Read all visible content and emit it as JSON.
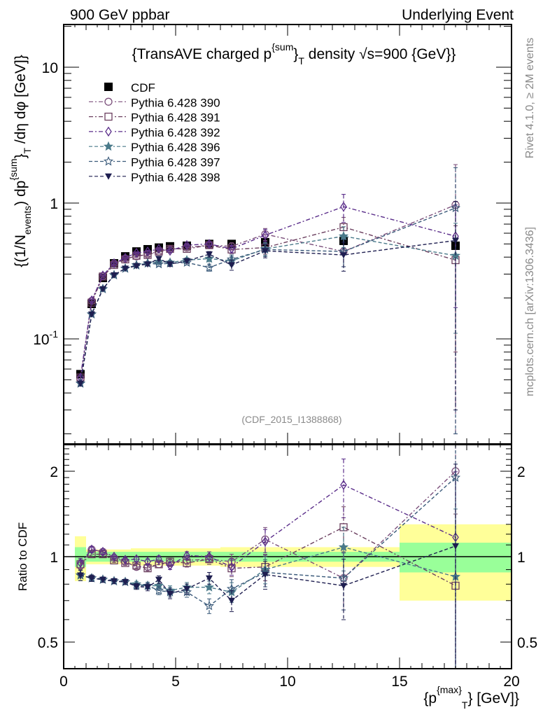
{
  "header": {
    "left": "900 GeV ppbar",
    "right": "Underlying Event"
  },
  "side_labels": {
    "rivet": "Rivet 4.1.0, ≥ 2M events",
    "mcplots": "mcplots.cern.ch [arXiv:1306.3436]"
  },
  "chart_data": [
    {
      "type": "line",
      "panel": "main",
      "title": "{TransAVE charged p^{sum}_T density √s=900 {GeV}}",
      "title_parts": {
        "pre": "{TransAVE charged p",
        "sup": "{sum",
        "sup_close": "}",
        "sub": "T",
        "post": " density √s=900 {GeV}}"
      },
      "ylabel": "{(1/N_events) dp^{sum}_T /dη dφ [GeV]}",
      "ylabel_parts": {
        "a": "{(1/N",
        "b": "events",
        "c": ") dp",
        "d": "{sum",
        "e": "}",
        "f": "T",
        "g": " /dη  dφ [GeV]}"
      },
      "xlabel": "",
      "yscale": "log",
      "ylim": [
        0.018,
        20
      ],
      "xlim": [
        0,
        20
      ],
      "yticks": [
        {
          "v": 10,
          "label": "10"
        },
        {
          "v": 1,
          "label": "1"
        },
        {
          "v": 0.1,
          "label": "10^-1"
        }
      ],
      "annotation": "(CDF_2015_I1388868)",
      "legend_position": "top-left",
      "x": [
        0.75,
        1.25,
        1.75,
        2.25,
        2.75,
        3.25,
        3.75,
        4.25,
        4.75,
        5.5,
        6.5,
        7.5,
        9.0,
        12.5,
        17.5
      ],
      "data": {
        "name": "CDF",
        "values": [
          0.055,
          0.181,
          0.281,
          0.36,
          0.405,
          0.44,
          0.457,
          0.47,
          0.48,
          0.485,
          0.5,
          0.5,
          0.515,
          0.527,
          0.485
        ]
      },
      "series": [
        {
          "name": "Pythia 6.428 390",
          "marker": "circle-open",
          "style": "dashdot",
          "color": "#7b4f7b",
          "values": [
            0.051,
            0.19,
            0.29,
            0.358,
            0.39,
            0.405,
            0.42,
            0.44,
            0.455,
            0.47,
            0.49,
            0.48,
            0.59,
            0.44,
            0.97
          ],
          "errors": [
            0.002,
            0.004,
            0.005,
            0.006,
            0.007,
            0.008,
            0.01,
            0.012,
            0.014,
            0.015,
            0.02,
            0.03,
            0.06,
            0.1,
            0.95
          ]
        },
        {
          "name": "Pythia 6.428 391",
          "marker": "square-open",
          "style": "dashdot",
          "color": "#6b3f5f",
          "values": [
            0.052,
            0.185,
            0.288,
            0.35,
            0.385,
            0.41,
            0.415,
            0.44,
            0.46,
            0.46,
            0.49,
            0.455,
            0.47,
            0.665,
            0.38
          ],
          "errors": [
            0.002,
            0.004,
            0.005,
            0.006,
            0.007,
            0.008,
            0.01,
            0.012,
            0.014,
            0.015,
            0.02,
            0.03,
            0.05,
            0.12,
            0.3
          ]
        },
        {
          "name": "Pythia 6.428 392",
          "marker": "diamond-open",
          "style": "dashdot",
          "color": "#5a2d8a",
          "values": [
            0.052,
            0.192,
            0.293,
            0.36,
            0.395,
            0.43,
            0.44,
            0.46,
            0.445,
            0.49,
            0.5,
            0.46,
            0.58,
            0.94,
            0.57
          ],
          "errors": [
            0.002,
            0.004,
            0.005,
            0.006,
            0.007,
            0.008,
            0.01,
            0.012,
            0.014,
            0.015,
            0.02,
            0.03,
            0.06,
            0.22,
            0.4
          ]
        },
        {
          "name": "Pythia 6.428 396",
          "marker": "star-filled",
          "style": "dashed",
          "color": "#4a7a8a",
          "values": [
            0.047,
            0.152,
            0.233,
            0.295,
            0.33,
            0.35,
            0.36,
            0.37,
            0.365,
            0.38,
            0.39,
            0.375,
            0.46,
            0.57,
            0.41
          ],
          "errors": [
            0.002,
            0.004,
            0.005,
            0.006,
            0.007,
            0.008,
            0.01,
            0.012,
            0.014,
            0.015,
            0.02,
            0.03,
            0.05,
            0.1,
            0.3
          ]
        },
        {
          "name": "Pythia 6.428 397",
          "marker": "star-open",
          "style": "dashed",
          "color": "#3a5a7a",
          "values": [
            0.047,
            0.152,
            0.233,
            0.295,
            0.33,
            0.348,
            0.36,
            0.355,
            0.36,
            0.365,
            0.335,
            0.385,
            0.455,
            0.44,
            0.92
          ],
          "errors": [
            0.002,
            0.004,
            0.005,
            0.006,
            0.007,
            0.008,
            0.01,
            0.012,
            0.014,
            0.015,
            0.02,
            0.03,
            0.05,
            0.1,
            0.9
          ]
        },
        {
          "name": "Pythia 6.428 398",
          "marker": "triangle-down-filled",
          "style": "dashed",
          "color": "#1e1e50",
          "values": [
            0.047,
            0.152,
            0.233,
            0.295,
            0.33,
            0.345,
            0.355,
            0.39,
            0.355,
            0.375,
            0.42,
            0.35,
            0.445,
            0.415,
            0.53
          ],
          "errors": [
            0.002,
            0.004,
            0.005,
            0.006,
            0.007,
            0.008,
            0.01,
            0.012,
            0.014,
            0.015,
            0.02,
            0.03,
            0.05,
            0.1,
            0.5
          ]
        }
      ]
    },
    {
      "type": "line",
      "panel": "ratio",
      "ylabel": "Ratio to CDF",
      "xlabel": "{p_T^{max}} [GeV]}",
      "xlabel_parts": {
        "a": "{p",
        "sup": "{max",
        "sup_close": "}",
        "sub": "T",
        "post": "} [GeV]}"
      },
      "yscale": "log",
      "ylim": [
        0.4,
        2.5
      ],
      "xlim": [
        0,
        20
      ],
      "yticks": [
        {
          "v": 2,
          "label": "2"
        },
        {
          "v": 1,
          "label": "1"
        },
        {
          "v": 0.5,
          "label": "0.5"
        }
      ],
      "xticks": [
        {
          "v": 0,
          "label": "0"
        },
        {
          "v": 5,
          "label": "5"
        },
        {
          "v": 10,
          "label": "10"
        },
        {
          "v": 15,
          "label": "15"
        },
        {
          "v": 20,
          "label": "20"
        }
      ],
      "uncertainty_bands": {
        "bins": [
          [
            0.5,
            1.0
          ],
          [
            1.0,
            1.5
          ],
          [
            1.5,
            2.0
          ],
          [
            2.0,
            2.5
          ],
          [
            2.5,
            3.0
          ],
          [
            3.0,
            3.5
          ],
          [
            3.5,
            4.0
          ],
          [
            4.0,
            4.5
          ],
          [
            4.5,
            5.0
          ],
          [
            5.0,
            6.0
          ],
          [
            6.0,
            7.0
          ],
          [
            7.0,
            8.0
          ],
          [
            8.0,
            10.0
          ],
          [
            10.0,
            15.0
          ],
          [
            15.0,
            20.0
          ]
        ],
        "stat": [
          0.08,
          0.04,
          0.04,
          0.04,
          0.04,
          0.04,
          0.04,
          0.04,
          0.04,
          0.04,
          0.04,
          0.04,
          0.04,
          0.04,
          0.12
        ],
        "total": [
          0.18,
          0.06,
          0.06,
          0.06,
          0.06,
          0.07,
          0.07,
          0.07,
          0.07,
          0.07,
          0.07,
          0.08,
          0.08,
          0.08,
          0.3
        ],
        "stat_color": "#99ff99",
        "total_color": "#ffff99"
      },
      "x": [
        0.75,
        1.25,
        1.75,
        2.25,
        2.75,
        3.25,
        3.75,
        4.25,
        4.75,
        5.5,
        6.5,
        7.5,
        9.0,
        12.5,
        17.5
      ],
      "series": [
        {
          "name": "Pythia 6.428 390",
          "values": [
            0.93,
            1.06,
            1.04,
            0.99,
            0.96,
            0.92,
            0.92,
            0.94,
            0.95,
            0.97,
            0.98,
            0.96,
            1.15,
            0.84,
            2.0
          ]
        },
        {
          "name": "Pythia 6.428 391",
          "values": [
            0.94,
            1.02,
            1.02,
            0.97,
            0.95,
            0.93,
            0.91,
            0.94,
            0.96,
            0.95,
            0.98,
            0.91,
            0.92,
            1.27,
            0.79
          ]
        },
        {
          "name": "Pythia 6.428 392",
          "values": [
            0.95,
            1.06,
            1.04,
            1.0,
            0.975,
            0.98,
            0.96,
            0.98,
            0.93,
            1.01,
            1.0,
            0.92,
            1.13,
            1.79,
            1.17
          ]
        },
        {
          "name": "Pythia 6.428 396",
          "values": [
            0.86,
            0.84,
            0.83,
            0.82,
            0.815,
            0.8,
            0.79,
            0.79,
            0.76,
            0.78,
            0.78,
            0.75,
            0.9,
            1.08,
            0.85
          ]
        },
        {
          "name": "Pythia 6.428 397",
          "values": [
            0.86,
            0.84,
            0.83,
            0.82,
            0.815,
            0.79,
            0.79,
            0.76,
            0.75,
            0.75,
            0.67,
            0.77,
            0.88,
            0.84,
            1.9
          ]
        },
        {
          "name": "Pythia 6.428 398",
          "values": [
            0.86,
            0.84,
            0.83,
            0.82,
            0.815,
            0.785,
            0.78,
            0.83,
            0.74,
            0.77,
            0.84,
            0.7,
            0.865,
            0.79,
            1.09
          ]
        }
      ]
    }
  ]
}
